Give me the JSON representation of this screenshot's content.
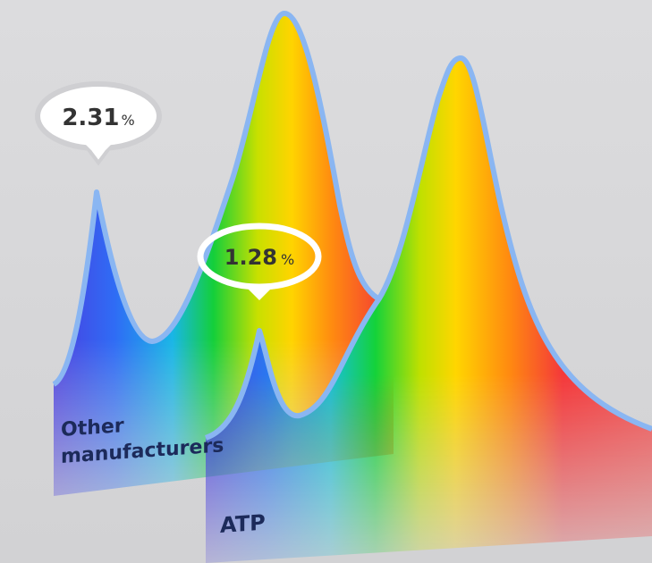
{
  "callouts": [
    {
      "value": "2.31",
      "unit": "%"
    },
    {
      "value": "1.28",
      "unit": "%"
    }
  ],
  "labels": {
    "back": [
      "Other",
      "manufacturers"
    ],
    "front": [
      "ATP"
    ]
  }
}
